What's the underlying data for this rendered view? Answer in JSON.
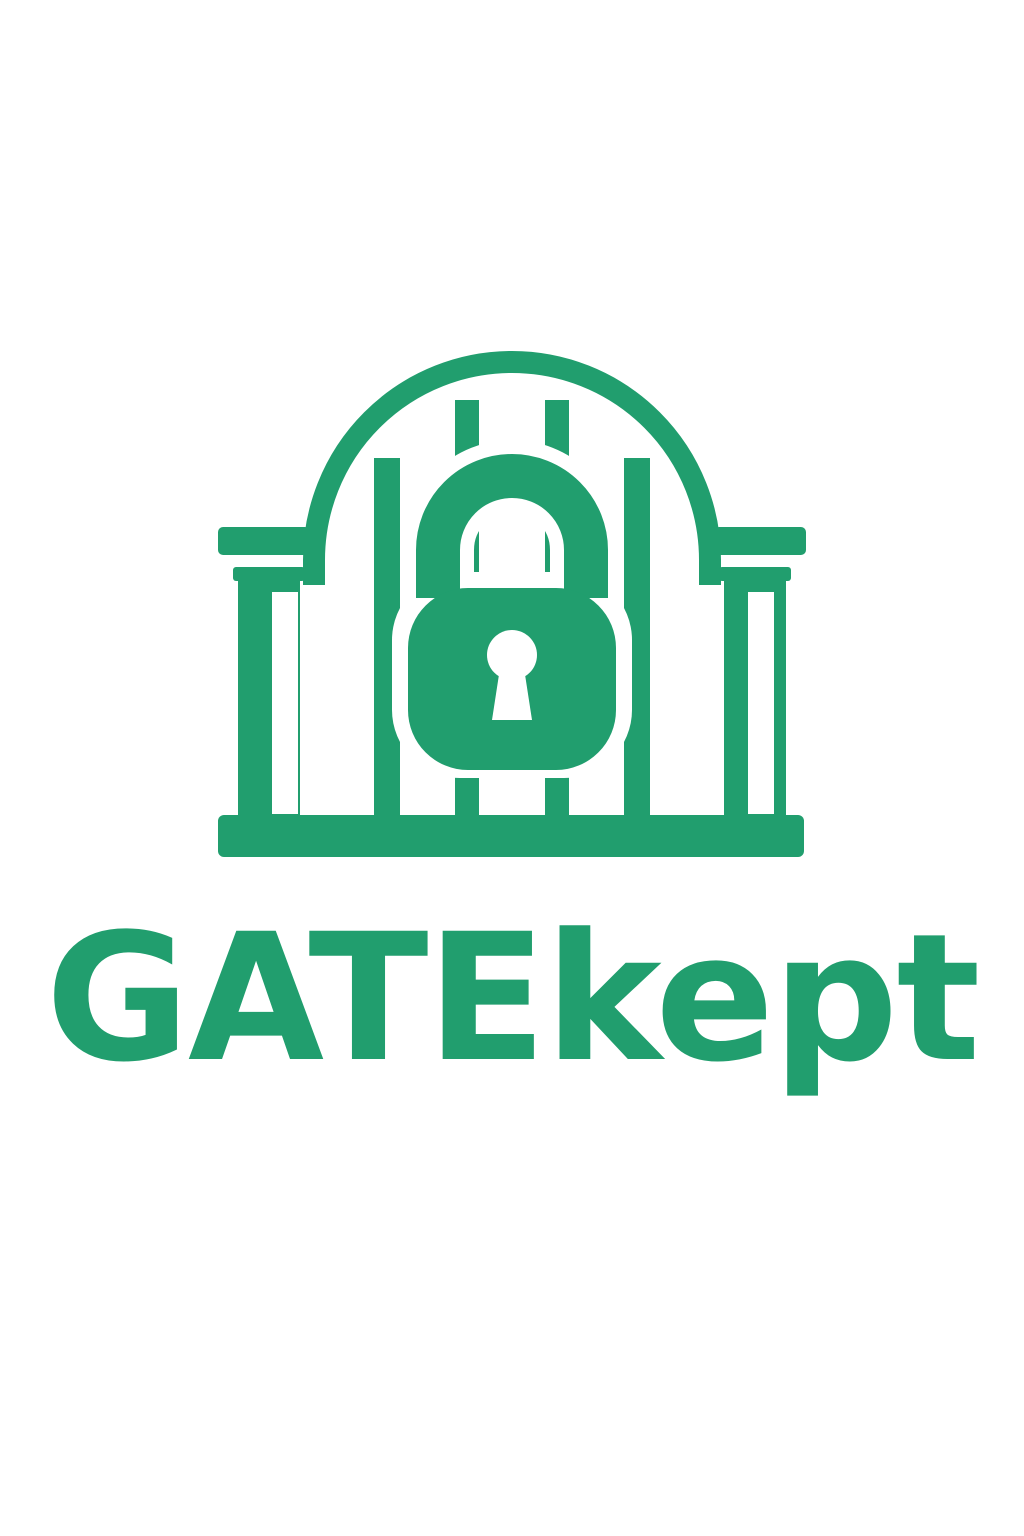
{
  "brand": {
    "name": "GATEkept",
    "color": "#219e6e",
    "icon": "gate-padlock-icon"
  }
}
